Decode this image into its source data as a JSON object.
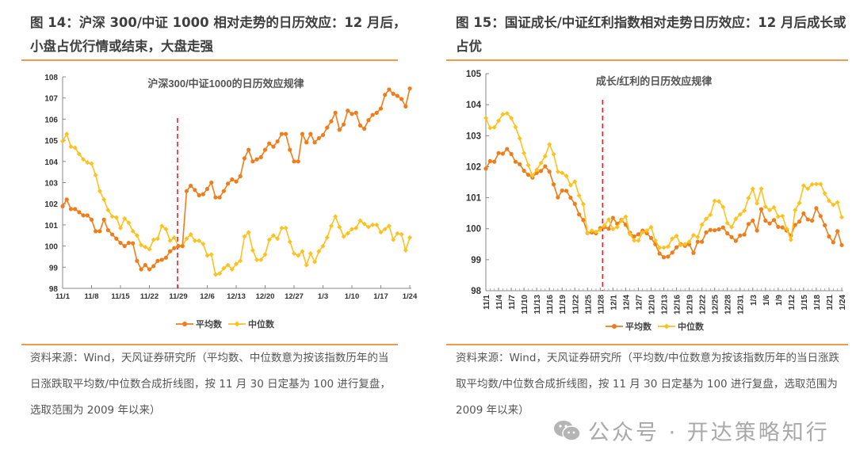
{
  "figures": [
    {
      "title": "图 14：沪深 300/中证 1000 相对走势的日历效应：12 月后，小盘占优行情或结束，大盘走强",
      "source": "资料来源：Wind，天风证券研究所（平均数、中位数意为按该指数历年的当日涨跌取平均数/中位数合成折线图，按 11 月 30 日定基为 100 进行复盘，选取范围为 2009 年以来）"
    },
    {
      "title": "图 15：国证成长/中证红利指数相对走势日历效应：12 月后成长或占优",
      "source": "资料来源：Wind，天风证券研究所（平均数/中位数意为按该指数历年的当日涨跌取平均数/中位数合成折线图，按 11 月 30 日定基为 100 进行复盘，选取范围为 2009 年以来）"
    }
  ],
  "watermark": {
    "icon": "wechat-icon",
    "text": "公众号 · 开达策略知行"
  },
  "colors": {
    "mean": "#F07D1A",
    "median": "#FFC11E",
    "vline": "#E8232A",
    "accent_rule": "#F29A4A"
  },
  "chart_data": [
    {
      "type": "line",
      "title": "沪深300/中证1000的日历效应规律",
      "xlabel": "",
      "ylabel": "",
      "ylim": [
        98,
        108
      ],
      "yticks": [
        "98",
        "99",
        "100",
        "101",
        "102",
        "103",
        "104",
        "105",
        "106",
        "107",
        "108"
      ],
      "xticks": [
        "11/1",
        "11/8",
        "11/15",
        "11/22",
        "11/29",
        "12/6",
        "12/13",
        "12/20",
        "12/27",
        "1/3",
        "1/10",
        "1/17",
        "1/24"
      ],
      "xtick_rotation": "horizontal",
      "vline": "11/29",
      "grid": false,
      "legend": "bottom",
      "categories": [
        "11/1",
        "11/2",
        "11/3",
        "11/4",
        "11/5",
        "11/6",
        "11/7",
        "11/8",
        "11/9",
        "11/10",
        "11/11",
        "11/12",
        "11/13",
        "11/14",
        "11/15",
        "11/16",
        "11/17",
        "11/18",
        "11/19",
        "11/20",
        "11/21",
        "11/22",
        "11/23",
        "11/24",
        "11/25",
        "11/26",
        "11/27",
        "11/28",
        "11/29",
        "11/30",
        "12/1",
        "12/2",
        "12/3",
        "12/4",
        "12/5",
        "12/6",
        "12/7",
        "12/8",
        "12/9",
        "12/10",
        "12/11",
        "12/12",
        "12/13",
        "12/14",
        "12/15",
        "12/16",
        "12/17",
        "12/18",
        "12/19",
        "12/20",
        "12/21",
        "12/22",
        "12/23",
        "12/24",
        "12/25",
        "12/26",
        "12/27",
        "12/28",
        "12/29",
        "12/30",
        "12/31",
        "1/1",
        "1/2",
        "1/3",
        "1/4",
        "1/5",
        "1/6",
        "1/7",
        "1/8",
        "1/9",
        "1/10",
        "1/11",
        "1/12",
        "1/13",
        "1/14",
        "1/15",
        "1/16",
        "1/17",
        "1/18",
        "1/19",
        "1/20",
        "1/21",
        "1/22",
        "1/23",
        "1/24"
      ],
      "series": [
        {
          "name": "平均数",
          "marker": "circle",
          "values": [
            101.88,
            102.2,
            101.75,
            101.75,
            101.6,
            101.45,
            101.45,
            101.25,
            100.7,
            100.7,
            101.25,
            100.75,
            100.55,
            100.35,
            100.15,
            100.0,
            100.15,
            100.13,
            99.3,
            98.9,
            99.1,
            98.9,
            99.05,
            99.3,
            99.35,
            99.45,
            99.75,
            99.9,
            100.0,
            100.0,
            102.6,
            102.85,
            102.65,
            102.4,
            102.45,
            102.7,
            103.0,
            102.3,
            102.3,
            102.6,
            102.95,
            103.15,
            103.05,
            103.3,
            104.15,
            104.55,
            104.0,
            104.1,
            104.2,
            104.55,
            104.85,
            104.7,
            104.95,
            105.3,
            105.3,
            104.55,
            104.0,
            104.0,
            105.3,
            104.9,
            105.3,
            104.9,
            105.1,
            105.25,
            105.6,
            105.9,
            106.3,
            105.5,
            105.75,
            106.4,
            106.25,
            106.3,
            105.7,
            105.55,
            105.95,
            106.2,
            106.3,
            106.5,
            107.15,
            107.4,
            107.2,
            107.1,
            106.95,
            106.6,
            107.45
          ]
        },
        {
          "name": "中位数",
          "marker": "diamond",
          "values": [
            104.95,
            105.3,
            104.7,
            104.65,
            104.35,
            104.1,
            103.95,
            103.9,
            103.35,
            102.6,
            102.2,
            101.7,
            101.4,
            101.35,
            100.85,
            101.3,
            101.1,
            100.7,
            100.5,
            100.05,
            99.95,
            99.85,
            100.3,
            100.35,
            100.95,
            100.8,
            100.25,
            100.4,
            100.0,
            100.0,
            100.35,
            100.55,
            100.25,
            100.25,
            100.1,
            99.55,
            99.6,
            98.65,
            98.7,
            98.95,
            99.1,
            98.9,
            99.15,
            99.3,
            100.45,
            100.65,
            99.8,
            99.35,
            99.35,
            99.6,
            100.3,
            100.5,
            100.35,
            100.85,
            100.85,
            100.2,
            99.65,
            99.55,
            99.75,
            99.1,
            99.65,
            99.25,
            99.75,
            100.0,
            100.4,
            100.95,
            101.4,
            100.9,
            100.45,
            100.6,
            100.8,
            100.85,
            101.2,
            101.05,
            100.9,
            101.0,
            101.0,
            100.65,
            100.8,
            100.95,
            100.3,
            100.6,
            100.55,
            99.8,
            100.4
          ]
        }
      ]
    },
    {
      "type": "line",
      "title": "成长/红利的日历效应规律",
      "xlabel": "",
      "ylabel": "",
      "ylim": [
        98,
        105
      ],
      "yticks": [
        "98",
        "99",
        "100",
        "101",
        "102",
        "103",
        "104",
        "105"
      ],
      "xticks": [
        "11/1",
        "11/4",
        "11/7",
        "11/10",
        "11/13",
        "11/16",
        "11/19",
        "11/22",
        "11/25",
        "11/28",
        "12/1",
        "12/4",
        "12/7",
        "12/10",
        "12/13",
        "12/16",
        "12/19",
        "12/22",
        "12/25",
        "12/28",
        "12/31",
        "1/3",
        "1/6",
        "1/9",
        "1/12",
        "1/15",
        "1/18",
        "1/21",
        "1/24"
      ],
      "xtick_rotation": "vertical",
      "vline": "11/28",
      "grid": false,
      "legend": "bottom",
      "categories": [
        "11/1",
        "11/2",
        "11/3",
        "11/4",
        "11/5",
        "11/6",
        "11/7",
        "11/8",
        "11/9",
        "11/10",
        "11/11",
        "11/12",
        "11/13",
        "11/14",
        "11/15",
        "11/16",
        "11/17",
        "11/18",
        "11/19",
        "11/20",
        "11/21",
        "11/22",
        "11/23",
        "11/24",
        "11/25",
        "11/26",
        "11/27",
        "11/28",
        "11/29",
        "11/30",
        "12/1",
        "12/2",
        "12/3",
        "12/4",
        "12/5",
        "12/6",
        "12/7",
        "12/8",
        "12/9",
        "12/10",
        "12/11",
        "12/12",
        "12/13",
        "12/14",
        "12/15",
        "12/16",
        "12/17",
        "12/18",
        "12/19",
        "12/20",
        "12/21",
        "12/22",
        "12/23",
        "12/24",
        "12/25",
        "12/26",
        "12/27",
        "12/28",
        "12/29",
        "12/30",
        "12/31",
        "1/1",
        "1/2",
        "1/3",
        "1/4",
        "1/5",
        "1/6",
        "1/7",
        "1/8",
        "1/9",
        "1/10",
        "1/11",
        "1/12",
        "1/13",
        "1/14",
        "1/15",
        "1/16",
        "1/17",
        "1/18",
        "1/19",
        "1/20",
        "1/21",
        "1/22",
        "1/23",
        "1/24"
      ],
      "series": [
        {
          "name": "平均数",
          "marker": "circle",
          "values": [
            101.94,
            102.18,
            102.16,
            102.44,
            102.42,
            102.57,
            102.41,
            102.16,
            102.08,
            101.87,
            101.74,
            101.65,
            101.8,
            101.86,
            102.01,
            101.84,
            101.43,
            101.01,
            101.23,
            101.22,
            101.0,
            100.8,
            100.46,
            100.28,
            99.86,
            99.88,
            99.85,
            100.02,
            100.05,
            100.0,
            100.35,
            100.16,
            100.28,
            100.13,
            99.87,
            99.75,
            99.82,
            99.94,
            99.85,
            99.7,
            99.5,
            99.2,
            99.08,
            99.1,
            99.23,
            99.4,
            99.5,
            99.45,
            99.5,
            99.22,
            99.58,
            99.58,
            99.88,
            99.96,
            99.95,
            99.98,
            100.04,
            99.85,
            99.73,
            99.61,
            99.78,
            99.81,
            100.15,
            100.26,
            99.94,
            100.63,
            100.26,
            100.17,
            100.28,
            100.06,
            100.04,
            99.94,
            99.78,
            100.12,
            100.23,
            100.49,
            100.3,
            100.26,
            100.66,
            100.41,
            100.11,
            99.75,
            99.56,
            99.92,
            99.47
          ]
        },
        {
          "name": "中位数",
          "marker": "diamond",
          "values": [
            103.57,
            103.25,
            103.27,
            103.48,
            103.69,
            103.72,
            103.57,
            103.28,
            102.91,
            102.44,
            102.05,
            101.71,
            101.9,
            102.12,
            102.34,
            102.72,
            102.4,
            101.84,
            101.8,
            101.7,
            101.4,
            101.52,
            101.07,
            100.79,
            99.86,
            99.94,
            99.9,
            99.96,
            100.1,
            100.3,
            99.99,
            100.05,
            100.26,
            100.39,
            99.83,
            99.62,
            99.62,
            99.88,
            99.94,
            100.05,
            99.62,
            99.39,
            99.39,
            99.42,
            99.68,
            99.77,
            99.47,
            99.5,
            99.58,
            99.79,
            99.73,
            100.13,
            100.32,
            100.45,
            100.9,
            100.88,
            100.7,
            100.18,
            100.05,
            100.32,
            100.46,
            100.58,
            100.99,
            101.29,
            100.82,
            101.29,
            100.71,
            100.6,
            100.69,
            100.39,
            100.41,
            100.0,
            99.64,
            100.6,
            100.83,
            101.39,
            101.29,
            101.43,
            101.44,
            101.44,
            101.14,
            100.9,
            100.77,
            100.85,
            100.37
          ]
        }
      ]
    }
  ]
}
